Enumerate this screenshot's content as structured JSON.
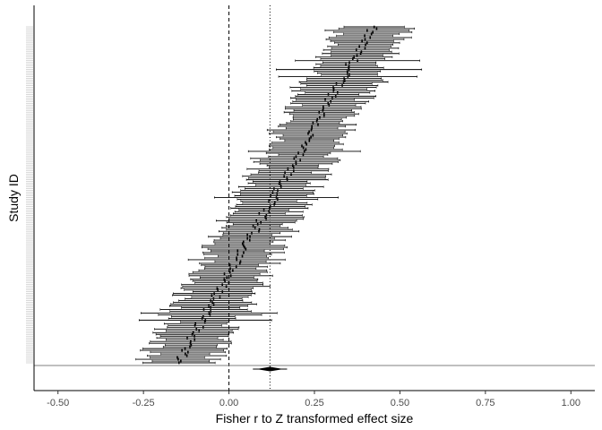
{
  "chart_data": {
    "type": "forest",
    "xlabel": "Fisher r to Z transformed effect size",
    "ylabel": "Study ID",
    "xlim": [
      -0.57,
      1.07
    ],
    "x_ticks": [
      -0.5,
      -0.25,
      0.0,
      0.25,
      0.5,
      0.75,
      1.0
    ],
    "x_tick_labels": [
      "-0.50",
      "-0.25",
      "0.00",
      "0.25",
      "0.50",
      "0.75",
      "1.00"
    ],
    "grid": false,
    "null_line": 0.0,
    "study_count": 190,
    "studies_sorted_by_effect": true,
    "effect_range": [
      -0.15,
      0.42
    ],
    "typical_ci_halfwidth": 0.1,
    "summary": {
      "estimate": 0.12,
      "ci_low": 0.08,
      "ci_high": 0.16,
      "pi_low": 0.07,
      "pi_high": 0.17
    },
    "colors": {
      "line": "#000000",
      "separator": "#7f7f7f",
      "study_labels": "#c8c8c8"
    }
  }
}
